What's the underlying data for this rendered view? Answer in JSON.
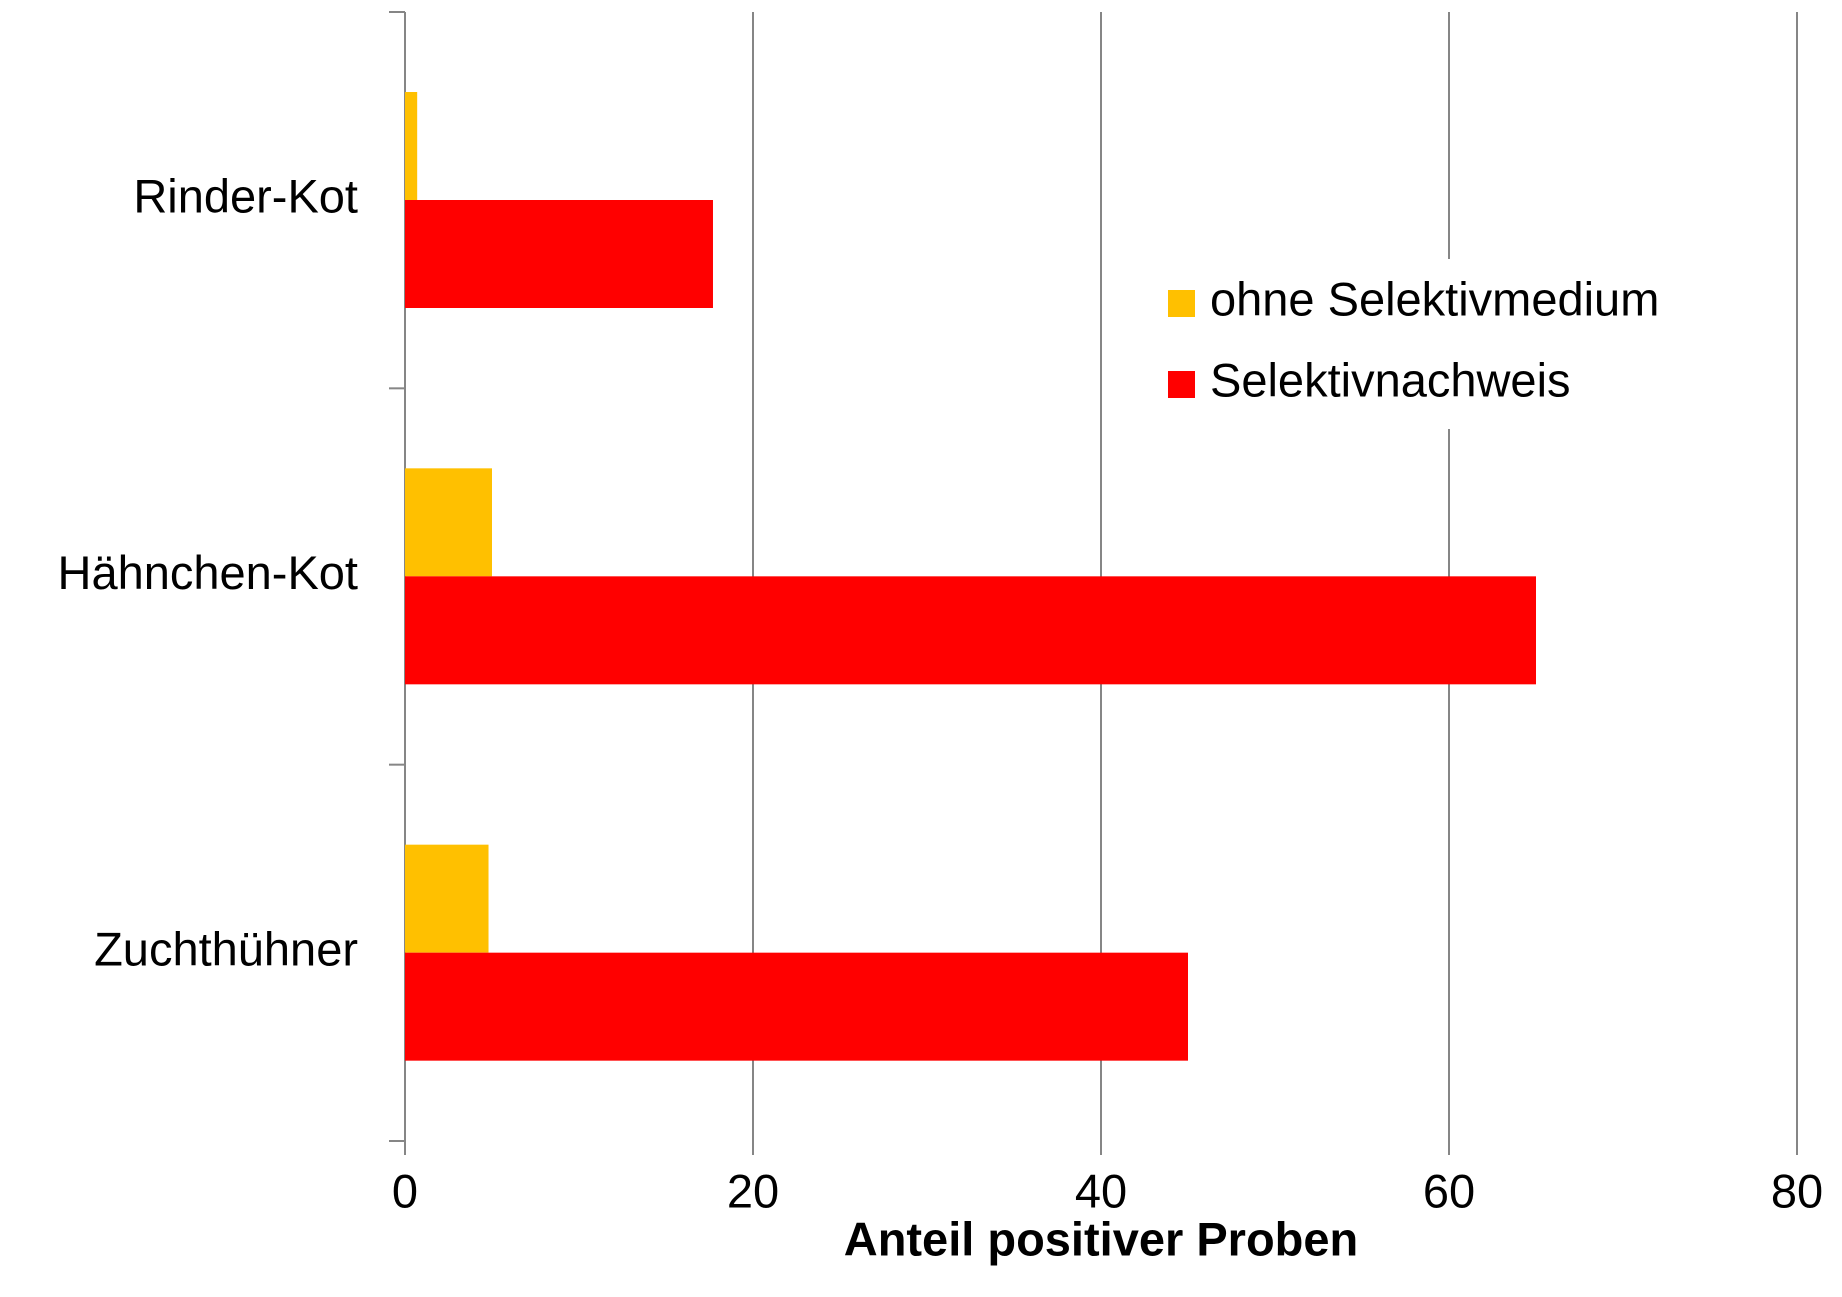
{
  "chart_data": {
    "type": "barh",
    "xlabel": "Anteil positiver Proben",
    "categories": [
      "Rinder-Kot",
      "Hähnchen-Kot",
      "Zuchthühner"
    ],
    "series": [
      {
        "name": "ohne Selektivmedium",
        "color": "#ffc000",
        "values": [
          0.7,
          5.0,
          4.8
        ]
      },
      {
        "name": "Selektivnachweis",
        "color": "#ff0000",
        "values": [
          17.7,
          65,
          45
        ]
      }
    ],
    "xlim": [
      0,
      80
    ],
    "xticks": [
      0,
      20,
      40,
      60,
      80
    ],
    "grid": true,
    "legend": "right"
  }
}
